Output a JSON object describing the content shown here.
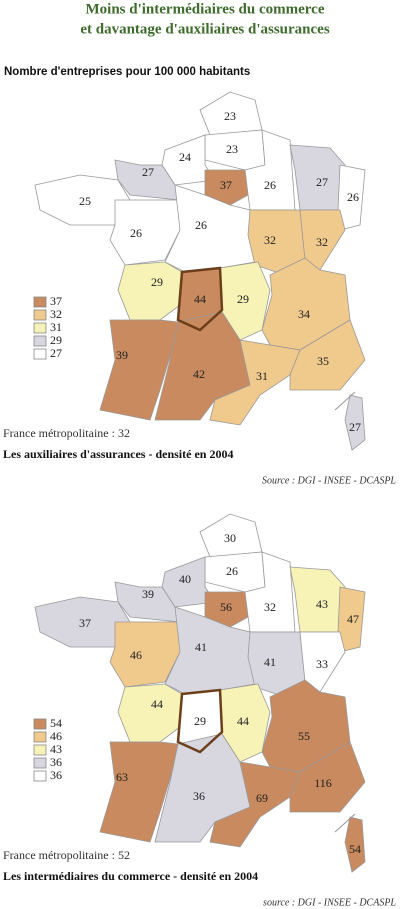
{
  "header": {
    "title_lines": [
      "Moins d'intermédiaires du commerce",
      "et davantage d'auxiliaires d'assurances"
    ],
    "subtitle": "Nombre d'entreprises pour 100 000 habitants"
  },
  "maps": [
    {
      "regions": [
        {
          "label": "23",
          "color": "#ffffff"
        },
        {
          "label": "23",
          "color": "#ffffff"
        },
        {
          "label": "24",
          "color": "#ffffff"
        },
        {
          "label": "27",
          "color": "#d8d7df"
        },
        {
          "label": "37",
          "color": "#c98a5f"
        },
        {
          "label": "26",
          "color": "#ffffff"
        },
        {
          "label": "27",
          "color": "#d8d7df"
        },
        {
          "label": "26",
          "color": "#ffffff"
        },
        {
          "label": "25",
          "color": "#ffffff"
        },
        {
          "label": "26",
          "color": "#ffffff"
        },
        {
          "label": "26",
          "color": "#ffffff"
        },
        {
          "label": "32",
          "color": "#f0c98d"
        },
        {
          "label": "32",
          "color": "#f0c98d"
        },
        {
          "label": "29",
          "color": "#f7f3b7"
        },
        {
          "label": "44",
          "color": "#c98a5f"
        },
        {
          "label": "29",
          "color": "#f7f3b7"
        },
        {
          "label": "34",
          "color": "#f0c98d"
        },
        {
          "label": "39",
          "color": "#c98a5f"
        },
        {
          "label": "42",
          "color": "#c98a5f"
        },
        {
          "label": "31",
          "color": "#f0c98d"
        },
        {
          "label": "35",
          "color": "#f0c98d"
        },
        {
          "label": "27",
          "color": "#d8d7df"
        }
      ],
      "legend": [
        {
          "label": "37",
          "color": "#c98a5f"
        },
        {
          "label": "32",
          "color": "#f0c98d"
        },
        {
          "label": "31",
          "color": "#f7f3b7"
        },
        {
          "label": "29",
          "color": "#d8d7df"
        },
        {
          "label": "27",
          "color": "#ffffff"
        }
      ],
      "total": "France métropolitaine : 32",
      "caption": "Les auxiliaires d'assurances - densité en 2004",
      "source": "Source : DGI - INSEE - DCASPL"
    },
    {
      "regions": [
        {
          "label": "30",
          "color": "#ffffff"
        },
        {
          "label": "26",
          "color": "#ffffff"
        },
        {
          "label": "40",
          "color": "#d8d7df"
        },
        {
          "label": "39",
          "color": "#d8d7df"
        },
        {
          "label": "56",
          "color": "#c98a5f"
        },
        {
          "label": "32",
          "color": "#ffffff"
        },
        {
          "label": "43",
          "color": "#f7f3b7"
        },
        {
          "label": "47",
          "color": "#f0c98d"
        },
        {
          "label": "37",
          "color": "#d8d7df"
        },
        {
          "label": "46",
          "color": "#f0c98d"
        },
        {
          "label": "41",
          "color": "#d8d7df"
        },
        {
          "label": "41",
          "color": "#d8d7df"
        },
        {
          "label": "33",
          "color": "#ffffff"
        },
        {
          "label": "44",
          "color": "#f7f3b7"
        },
        {
          "label": "29",
          "color": "#ffffff"
        },
        {
          "label": "44",
          "color": "#f7f3b7"
        },
        {
          "label": "55",
          "color": "#c98a5f"
        },
        {
          "label": "63",
          "color": "#c98a5f"
        },
        {
          "label": "36",
          "color": "#d8d7df"
        },
        {
          "label": "69",
          "color": "#c98a5f"
        },
        {
          "label": "116",
          "color": "#c98a5f"
        },
        {
          "label": "54",
          "color": "#c98a5f"
        }
      ],
      "legend": [
        {
          "label": "54",
          "color": "#c98a5f"
        },
        {
          "label": "46",
          "color": "#f0c98d"
        },
        {
          "label": "43",
          "color": "#f7f3b7"
        },
        {
          "label": "36",
          "color": "#d8d7df"
        },
        {
          "label": "36",
          "color": "#ffffff"
        }
      ],
      "total": "France métropolitaine : 52",
      "caption": "Les intermédiaires du commerce - densité en 2004",
      "source": "source : DGI - INSEE - DCASPL"
    }
  ]
}
